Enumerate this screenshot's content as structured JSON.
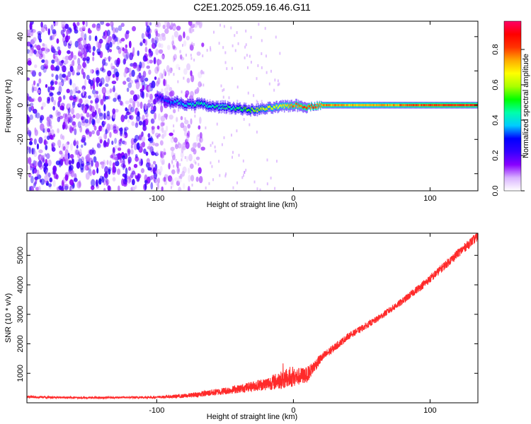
{
  "title": "C2E1.2025.059.16.46.G11",
  "colorbar": {
    "label": "Normalized spectral amplitude",
    "ticks": [
      0.0,
      0.2,
      0.4,
      0.6,
      0.8
    ],
    "tick_labels": [
      "0.0",
      "0.2",
      "0.4",
      "0.6",
      "0.8"
    ],
    "colormap": [
      "#ffffff",
      "#d9b3ff",
      "#8800ff",
      "#3300ff",
      "#0000ff",
      "#00ccff",
      "#00ffaa",
      "#00ff00",
      "#aaff00",
      "#ffff00",
      "#ffaa00",
      "#ff3300",
      "#ff0000",
      "#ff0066"
    ],
    "range": [
      0.0,
      0.96
    ]
  },
  "chart_data": [
    {
      "type": "heatmap",
      "xlabel": "Height of straight line (km)",
      "ylabel": "Frequency (Hz)",
      "xlim": [
        -195,
        135
      ],
      "ylim": [
        -50,
        49
      ],
      "x_ticks": [
        -100,
        0,
        100
      ],
      "x_tick_labels": [
        "-100",
        "0",
        "100"
      ],
      "y_ticks": [
        -40,
        -20,
        0,
        20,
        40
      ],
      "y_tick_labels": [
        "-40",
        "-20",
        "0",
        "20",
        "40"
      ],
      "signal_trace": {
        "x": [
          -100,
          -95,
          -90,
          -85,
          -80,
          -70,
          -60,
          -50,
          -40,
          -30,
          -20,
          -10,
          0,
          10,
          20,
          40,
          60,
          80,
          100,
          120,
          135
        ],
        "frequency": [
          5,
          3,
          1,
          2,
          0,
          1,
          -1,
          -1,
          -2,
          -3,
          -2,
          -1,
          0,
          -1,
          0,
          0,
          0,
          0,
          0,
          0,
          0
        ],
        "amplitude": [
          0.25,
          0.3,
          0.35,
          0.4,
          0.4,
          0.45,
          0.45,
          0.45,
          0.5,
          0.6,
          0.65,
          0.7,
          0.8,
          0.85,
          0.8,
          0.75,
          0.75,
          0.8,
          0.85,
          0.85,
          0.85
        ]
      },
      "noise_region": {
        "x": [
          -195,
          -70
        ],
        "mean_amplitude": 0.2
      }
    },
    {
      "type": "line",
      "xlabel": "Height of straight line (km)",
      "ylabel": "SNR (10 * v/v)",
      "xlim": [
        -195,
        135
      ],
      "ylim": [
        0,
        5750
      ],
      "x_ticks": [
        -100,
        0,
        100
      ],
      "x_tick_labels": [
        "-100",
        "0",
        "100"
      ],
      "y_ticks": [
        1000,
        2000,
        3000,
        4000,
        5000
      ],
      "y_tick_labels": [
        "1000",
        "2000",
        "3000",
        "4000",
        "5000"
      ],
      "color": "#ff2a2a",
      "series": [
        {
          "x": [
            -195,
            -150,
            -100,
            -80,
            -60,
            -40,
            -30,
            -20,
            -10,
            0,
            5,
            10,
            20,
            40,
            60,
            80,
            100,
            120,
            135
          ],
          "values": [
            200,
            170,
            190,
            230,
            340,
            470,
            560,
            640,
            760,
            850,
            900,
            950,
            1500,
            2250,
            2800,
            3450,
            4200,
            5050,
            5650
          ],
          "noise": [
            40,
            30,
            40,
            70,
            110,
            140,
            170,
            220,
            300,
            320,
            300,
            260,
            160,
            110,
            110,
            120,
            140,
            150,
            160
          ]
        }
      ]
    }
  ]
}
